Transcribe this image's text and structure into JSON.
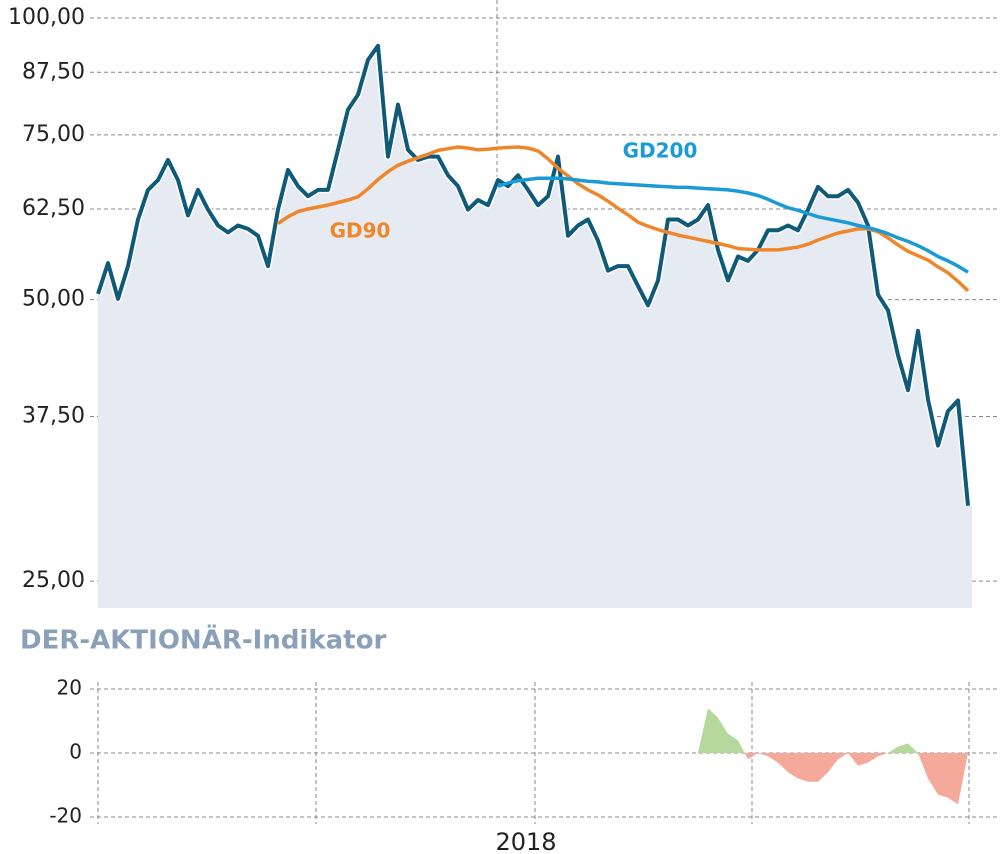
{
  "chart_data": [
    {
      "type": "line",
      "log_scale": true,
      "grid": true,
      "fill": "#e6ebf3",
      "ylim": [
        23.4,
        102
      ],
      "yticks": [
        {
          "value": 25,
          "label": "25,00"
        },
        {
          "value": 37.5,
          "label": "37,50"
        },
        {
          "value": 50,
          "label": "50,00"
        },
        {
          "value": 62.5,
          "label": "62,50"
        },
        {
          "value": 75,
          "label": "75,00"
        },
        {
          "value": 87.5,
          "label": "87,50"
        },
        {
          "value": 100,
          "label": "100,00"
        }
      ],
      "series": [
        {
          "color": "#0e5a78",
          "values": [
            50.7,
            54.7,
            50.1,
            54.3,
            60.9,
            65.5,
            67.1,
            70.5,
            67.1,
            61.5,
            65.5,
            62.4,
            60.0,
            59.0,
            60.0,
            59.5,
            58.5,
            54.3,
            62.4,
            68.8,
            66.1,
            64.5,
            65.5,
            65.5,
            72.3,
            79.8,
            82.8,
            90.2,
            93.4,
            71.1,
            80.8,
            72.3,
            70.5,
            71.1,
            71.1,
            67.9,
            66.1,
            62.4,
            63.9,
            63.1,
            67.1,
            66.1,
            67.9,
            65.5,
            63.1,
            64.5,
            71.1,
            58.5,
            60.0,
            60.9,
            57.8,
            53.7,
            54.3,
            54.3,
            51.7,
            49.3,
            52.4,
            60.9,
            60.9,
            60.0,
            60.9,
            63.1,
            56.5,
            52.4,
            55.6,
            55.0,
            56.5,
            59.3,
            59.3,
            60.0,
            59.3,
            62.4,
            66.0,
            64.5,
            64.5,
            65.5,
            63.5,
            60.0,
            50.6,
            48.7,
            43.6,
            40.0,
            46.3,
            39.1,
            34.9,
            38.0,
            39.0,
            30.1
          ]
        },
        {
          "name": "GD90",
          "color": "#f0862a",
          "values": [
            null,
            null,
            null,
            null,
            null,
            null,
            null,
            null,
            null,
            null,
            null,
            null,
            null,
            null,
            null,
            null,
            null,
            null,
            60.3,
            61.3,
            62.1,
            62.5,
            62.8,
            63.1,
            63.5,
            63.9,
            64.4,
            65.7,
            67.2,
            68.5,
            69.6,
            70.3,
            70.9,
            71.5,
            72.2,
            72.5,
            72.8,
            72.6,
            72.3,
            72.4,
            72.6,
            72.7,
            72.8,
            72.6,
            72.1,
            70.7,
            69.1,
            67.8,
            66.5,
            65.5,
            64.7,
            63.7,
            62.6,
            61.6,
            60.5,
            59.9,
            59.4,
            59.0,
            58.6,
            58.3,
            58.0,
            57.7,
            57.4,
            57.1,
            56.7,
            56.6,
            56.5,
            56.5,
            56.5,
            56.7,
            56.9,
            57.3,
            57.9,
            58.4,
            58.9,
            59.2,
            59.5,
            59.5,
            59.1,
            58.2,
            57.2,
            56.3,
            55.7,
            55.1,
            54.2,
            53.4,
            52.3,
            51.1
          ]
        },
        {
          "name": "GD200",
          "color": "#1a9ad6",
          "values": [
            null,
            null,
            null,
            null,
            null,
            null,
            null,
            null,
            null,
            null,
            null,
            null,
            null,
            null,
            null,
            null,
            null,
            null,
            null,
            null,
            null,
            null,
            null,
            null,
            null,
            null,
            null,
            null,
            null,
            null,
            null,
            null,
            null,
            null,
            null,
            null,
            null,
            null,
            null,
            null,
            66.1,
            66.6,
            67.0,
            67.2,
            67.4,
            67.4,
            67.4,
            67.3,
            67.1,
            66.9,
            66.8,
            66.6,
            66.5,
            66.4,
            66.3,
            66.2,
            66.1,
            66.0,
            65.9,
            65.9,
            65.8,
            65.7,
            65.6,
            65.5,
            65.3,
            65.0,
            64.6,
            64.0,
            63.3,
            62.7,
            62.3,
            61.8,
            61.3,
            61.0,
            60.7,
            60.4,
            60.0,
            59.7,
            59.3,
            58.8,
            58.2,
            57.7,
            57.1,
            56.4,
            55.6,
            55.0,
            54.3,
            53.5
          ]
        }
      ]
    },
    {
      "type": "area",
      "title": "DER-AKTIONÄR-Indikator",
      "grid": true,
      "positive_color": "#b5d99c",
      "negative_color": "#f4a99b",
      "ylim": [
        -20,
        20
      ],
      "yticks": [
        -20,
        0,
        20
      ],
      "categories": [
        null,
        null,
        null,
        null,
        null,
        null,
        null,
        null,
        null,
        null,
        null,
        null,
        null,
        null,
        null,
        null,
        null,
        null,
        null,
        null,
        null,
        null,
        null,
        null,
        null,
        null,
        null,
        null,
        null,
        null,
        null,
        null,
        null,
        null,
        null,
        null,
        null,
        null,
        null,
        null,
        null,
        null,
        null,
        null,
        "2018",
        null,
        null,
        null,
        null,
        null,
        null,
        null,
        null,
        null,
        null,
        null,
        null,
        null,
        null,
        null,
        null,
        null,
        null,
        null,
        null,
        null,
        null,
        null,
        null,
        null,
        null,
        null,
        null,
        null,
        null,
        null,
        null,
        null,
        null,
        null,
        null,
        null,
        null,
        null,
        null,
        null,
        null,
        null
      ],
      "values": [
        0,
        0,
        0,
        0,
        0,
        0,
        0,
        0,
        0,
        0,
        0,
        0,
        0,
        0,
        0,
        0,
        0,
        0,
        0,
        0,
        0,
        0,
        0,
        0,
        0,
        0,
        0,
        0,
        0,
        0,
        0,
        0,
        0,
        0,
        0,
        0,
        0,
        0,
        0,
        0,
        0,
        0,
        0,
        0,
        0,
        0,
        0,
        0,
        0,
        0,
        0,
        0,
        0,
        0,
        0,
        0,
        0,
        0,
        0,
        0,
        0,
        14,
        11,
        6,
        4,
        -2,
        0,
        -1,
        -3,
        -6,
        -8,
        -9,
        -9,
        -6,
        -2,
        0,
        -4,
        -3,
        -1,
        0,
        2,
        3,
        0,
        -8,
        -13,
        -14,
        -16,
        0
      ]
    }
  ]
}
